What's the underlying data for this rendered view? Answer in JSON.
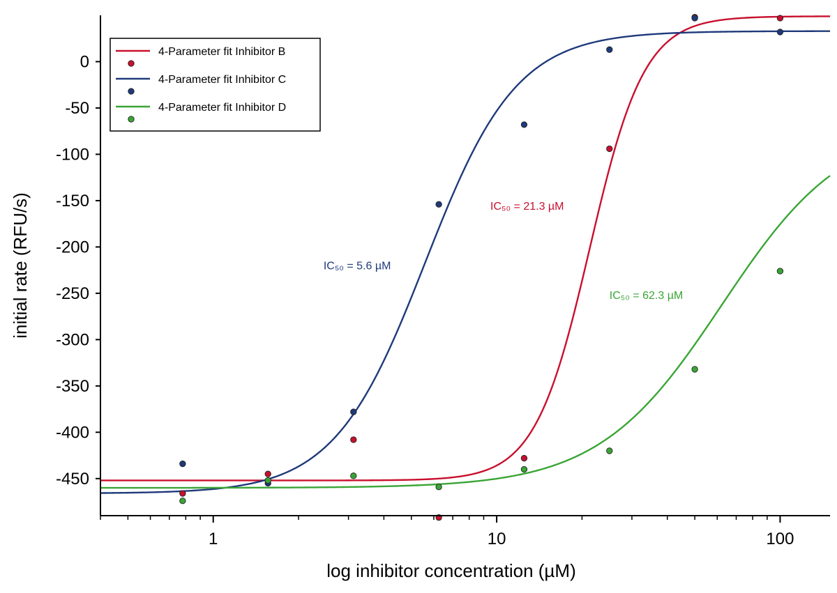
{
  "chart_data": {
    "type": "scatter",
    "x_scale": "log",
    "xlabel": "log inhibitor concentration (µM)",
    "ylabel": "initial rate (RFU/s)",
    "xlim": [
      0.4,
      150
    ],
    "ylim": [
      -490,
      50
    ],
    "x_ticks": [
      1,
      10,
      100
    ],
    "x_tick_labels": [
      "1",
      "10",
      "100"
    ],
    "y_ticks": [
      0,
      -50,
      -100,
      -150,
      -200,
      -250,
      -300,
      -350,
      -400,
      -450
    ],
    "y_tick_labels": [
      "0",
      "-50",
      "-100",
      "-150",
      "-200",
      "-250",
      "-300",
      "-350",
      "-400",
      "-450"
    ],
    "legend_position": "top-left",
    "series": [
      {
        "key": "B",
        "fit_name": "4-Parameter fit Inhibitor B",
        "color": "#c8102e",
        "x": [
          0.78,
          1.56,
          3.125,
          6.25,
          12.5,
          25,
          50,
          100
        ],
        "y": [
          -466,
          -445,
          -408,
          -492,
          -428,
          -94,
          48,
          47
        ],
        "fit": {
          "bottom": -452,
          "top": 49,
          "ic50": 21.3,
          "hill": 4.5
        },
        "ic50_label": "IC₅₀ = 21.3 µM",
        "ic50_label_at": {
          "x": 9.5,
          "y": -160
        }
      },
      {
        "key": "C",
        "fit_name": "4-Parameter fit Inhibitor C",
        "color": "#1f3a7a",
        "x": [
          0.78,
          1.56,
          3.125,
          6.25,
          12.5,
          25,
          50,
          100
        ],
        "y": [
          -434,
          -455,
          -378,
          -154,
          -68,
          13,
          47,
          32
        ],
        "fit": {
          "bottom": -466,
          "top": 33,
          "ic50": 5.6,
          "hill": 2.7
        },
        "ic50_label": "IC₅₀ = 5.6 µM",
        "ic50_label_at": {
          "x": 2.45,
          "y": -224
        }
      },
      {
        "key": "D",
        "fit_name": "4-Parameter fit Inhibitor D",
        "color": "#3aa535",
        "x": [
          0.78,
          1.56,
          3.125,
          6.25,
          12.5,
          25,
          50,
          100
        ],
        "y": [
          -474,
          -452,
          -447,
          -459,
          -440,
          -420,
          -332,
          -226
        ],
        "fit": {
          "bottom": -460,
          "top": -65,
          "ic50": 62.3,
          "hill": 2.0
        },
        "ic50_label": "IC₅₀ = 62.3 µM",
        "ic50_label_at": {
          "x": 25,
          "y": -256
        }
      }
    ]
  }
}
